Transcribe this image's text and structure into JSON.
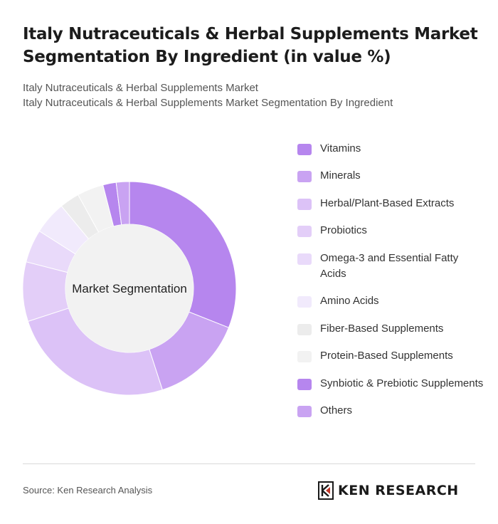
{
  "header": {
    "title": "Italy Nutraceuticals & Herbal Supplements Market Segmentation By Ingredient (in value %)",
    "subtitle_line1": "Italy Nutraceuticals & Herbal Supplements Market",
    "subtitle_line2": "Italy Nutraceuticals & Herbal Supplements Market Segmentation By Ingredient"
  },
  "chart_data": {
    "type": "pie",
    "donut": true,
    "center_label": "Market Segmentation",
    "legend_position": "right",
    "categories": [
      "Vitamins",
      "Minerals",
      "Herbal/Plant-Based Extracts",
      "Probiotics",
      "Omega-3 and Essential Fatty Acids",
      "Amino Acids",
      "Fiber-Based Supplements",
      "Protein-Based Supplements",
      "Synbiotic & Prebiotic Supplements",
      "Others"
    ],
    "values": [
      31,
      14,
      25,
      9,
      5,
      5,
      3,
      4,
      2,
      2
    ],
    "colors": [
      "#b686ee",
      "#c9a3f2",
      "#dcc2f7",
      "#e3cef8",
      "#e9dafa",
      "#f1eafc",
      "#ececec",
      "#f2f2f2",
      "#b686ee",
      "#c9a3f2"
    ]
  },
  "footer": {
    "source": "Source: Ken Research Analysis",
    "brand": "KEN RESEARCH"
  }
}
